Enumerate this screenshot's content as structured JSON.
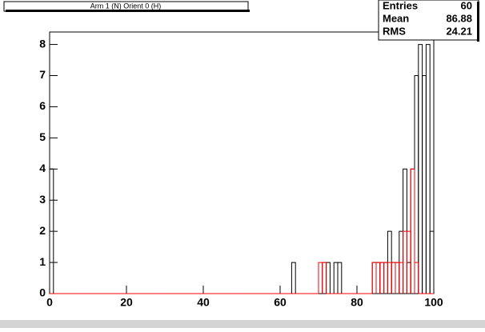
{
  "chart_data": {
    "type": "histogram",
    "title": "Arm 1 (N) Orient 0 (H)",
    "bins": [
      0,
      1,
      2,
      3,
      4,
      5,
      6,
      7,
      8,
      9,
      10,
      11,
      12,
      13,
      14,
      15,
      16,
      17,
      18,
      19,
      20,
      21,
      22,
      23,
      24,
      25,
      26,
      27,
      28,
      29,
      30,
      31,
      32,
      33,
      34,
      35,
      36,
      37,
      38,
      39,
      40,
      41,
      42,
      43,
      44,
      45,
      46,
      47,
      48,
      49,
      50,
      51,
      52,
      53,
      54,
      55,
      56,
      57,
      58,
      59,
      60,
      61,
      62,
      63,
      64,
      65,
      66,
      67,
      68,
      69,
      70,
      71,
      72,
      73,
      74,
      75,
      76,
      77,
      78,
      79,
      80,
      81,
      82,
      83,
      84,
      85,
      86,
      87,
      88,
      89,
      90,
      91,
      92,
      93,
      94,
      95,
      96,
      97,
      98,
      99,
      100
    ],
    "series": [
      {
        "color": "#000000",
        "values": [
          4,
          0,
          0,
          0,
          0,
          0,
          0,
          0,
          0,
          0,
          0,
          0,
          0,
          0,
          0,
          0,
          0,
          0,
          0,
          0,
          0,
          0,
          0,
          0,
          0,
          0,
          0,
          0,
          0,
          0,
          0,
          0,
          0,
          0,
          0,
          0,
          0,
          0,
          0,
          0,
          0,
          0,
          0,
          0,
          0,
          0,
          0,
          0,
          0,
          0,
          0,
          0,
          0,
          0,
          0,
          0,
          0,
          0,
          0,
          0,
          0,
          0,
          0,
          1,
          0,
          0,
          0,
          0,
          0,
          0,
          0,
          1,
          1,
          0,
          1,
          1,
          0,
          0,
          0,
          0,
          0,
          0,
          0,
          0,
          1,
          1,
          1,
          1,
          2,
          1,
          1,
          2,
          4,
          1,
          4,
          7,
          8,
          7,
          8,
          2
        ]
      },
      {
        "color": "#ff0000",
        "values": [
          0,
          0,
          0,
          0,
          0,
          0,
          0,
          0,
          0,
          0,
          0,
          0,
          0,
          0,
          0,
          0,
          0,
          0,
          0,
          0,
          0,
          0,
          0,
          0,
          0,
          0,
          0,
          0,
          0,
          0,
          0,
          0,
          0,
          0,
          0,
          0,
          0,
          0,
          0,
          0,
          0,
          0,
          0,
          0,
          0,
          0,
          0,
          0,
          0,
          0,
          0,
          0,
          0,
          0,
          0,
          0,
          0,
          0,
          0,
          0,
          0,
          0,
          0,
          0,
          0,
          0,
          0,
          0,
          0,
          0,
          1,
          1,
          0,
          0,
          0,
          0,
          0,
          0,
          0,
          0,
          0,
          0,
          0,
          0,
          1,
          1,
          1,
          1,
          1,
          1,
          1,
          1,
          2,
          2,
          4,
          1,
          0,
          0,
          0,
          0
        ]
      }
    ],
    "xlim": [
      0,
      100
    ],
    "xticks": [
      0,
      20,
      40,
      60,
      80,
      100
    ],
    "ylim": [
      0,
      8.4
    ],
    "yticks": [
      0,
      1,
      2,
      3,
      4,
      5,
      6,
      7,
      8
    ],
    "stats": [
      {
        "label": "Entries",
        "value": 60
      },
      {
        "label": "Mean",
        "value": 86.88
      },
      {
        "label": "RMS",
        "value": 24.21
      }
    ]
  }
}
